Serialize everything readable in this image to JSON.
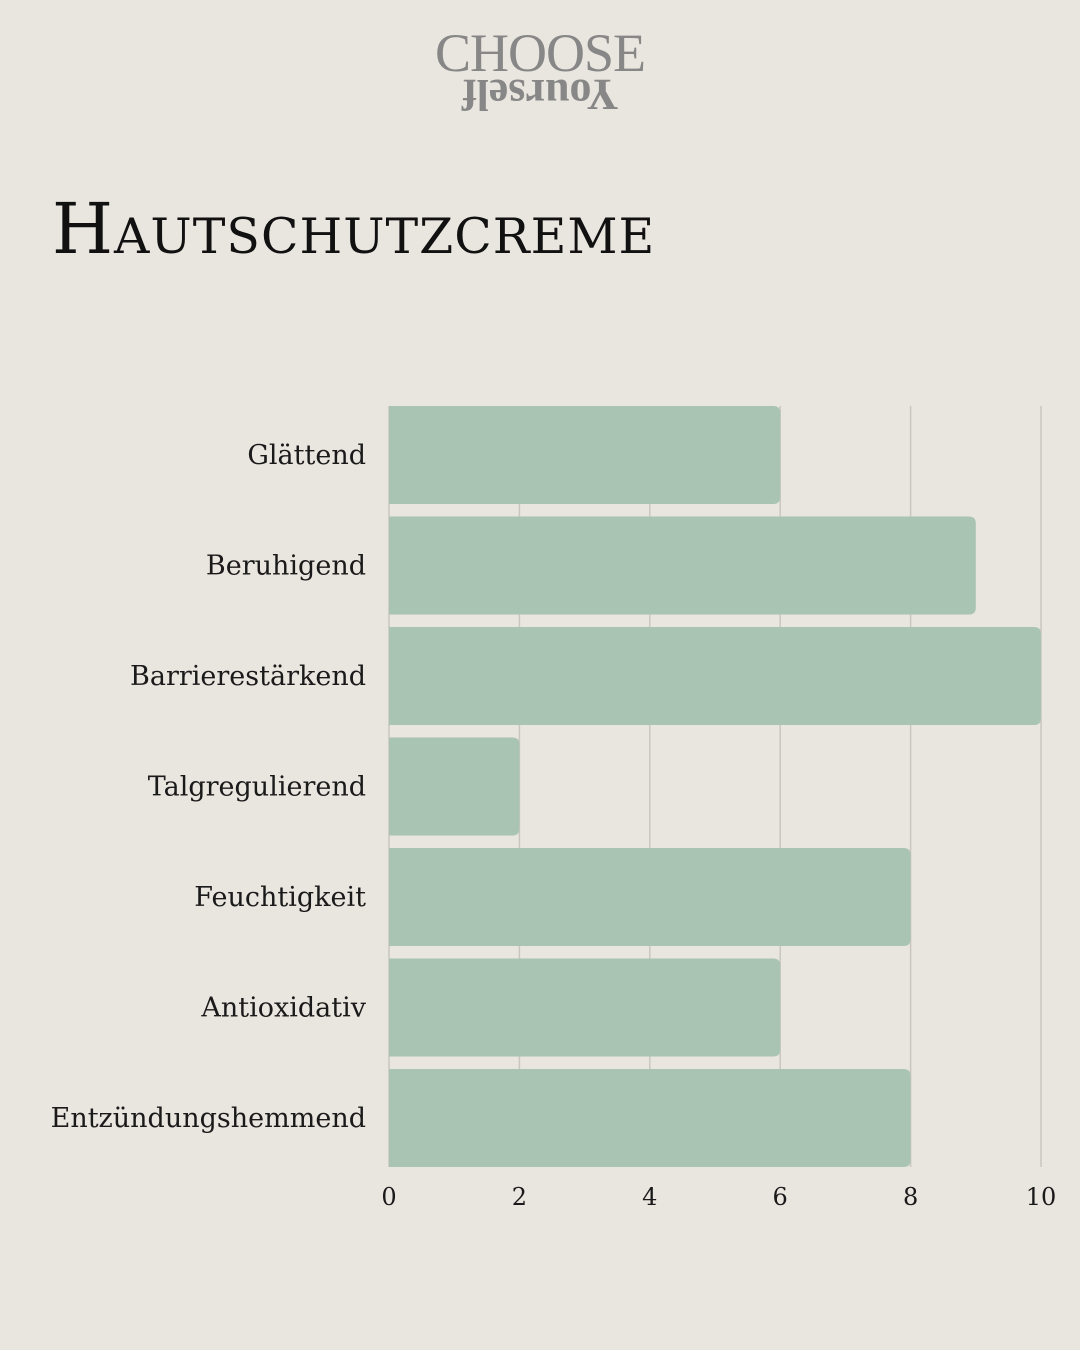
{
  "brand": {
    "logo_top": "CHOOSE",
    "logo_bottom": "Yourself"
  },
  "colors": {
    "background": "#e9e5df",
    "bar": "#a9c4b3",
    "grid": "#c9c6c1"
  },
  "chart_data": {
    "type": "bar",
    "orientation": "horizontal",
    "title": "Hautschutzcreme",
    "xlabel": "",
    "ylabel": "",
    "categories": [
      "Glättend",
      "Beruhigend",
      "Barrierestärkend",
      "Talgregulierend",
      "Feuchtigkeit",
      "Antioxidativ",
      "Entzündungshemmend"
    ],
    "values": [
      6,
      9,
      10,
      2,
      8,
      6,
      8
    ],
    "xlim": [
      0,
      10
    ],
    "xticks": [
      "0",
      "2",
      "4",
      "6",
      "8",
      "10"
    ],
    "grid": true,
    "legend": "none"
  }
}
